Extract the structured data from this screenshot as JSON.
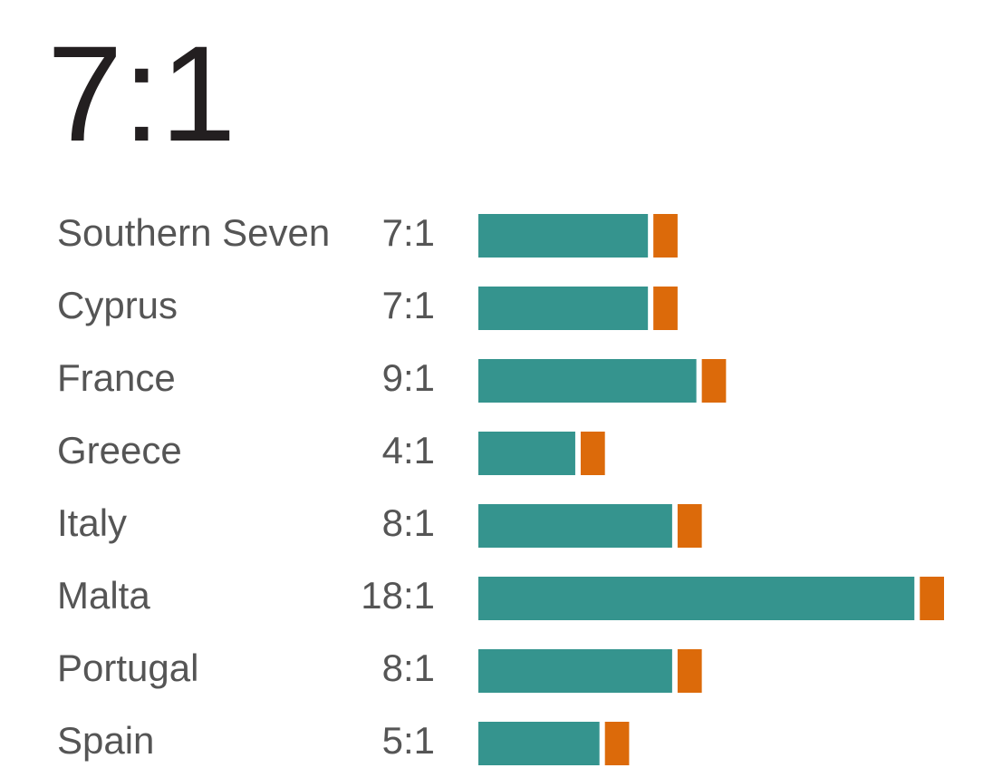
{
  "chart_data": {
    "type": "ratio-bar",
    "title": "7:1",
    "categories": [
      "Southern Seven",
      "Cyprus",
      "France",
      "Greece",
      "Italy",
      "Malta",
      "Portugal",
      "Spain"
    ],
    "series": [
      {
        "color": "#35948e",
        "values": [
          7,
          7,
          9,
          4,
          8,
          18,
          8,
          5
        ],
        "value_labels": [
          "7:1",
          "7:1",
          "9:1",
          "4:1",
          "8:1",
          "18:1",
          "8:1",
          "5:1"
        ]
      },
      {
        "color": "#dc6a0a",
        "values": [
          1,
          1,
          1,
          1,
          1,
          1,
          1,
          1
        ]
      }
    ]
  }
}
